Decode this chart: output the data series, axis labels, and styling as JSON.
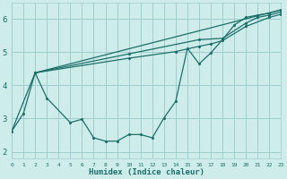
{
  "bg_color": "#ceecea",
  "grid_color": "#9ecece",
  "line_color": "#1a7068",
  "xlabel": "Humidex (Indice chaleur)",
  "xlim": [
    0,
    23
  ],
  "ylim": [
    1.8,
    6.5
  ],
  "yticks": [
    2,
    3,
    4,
    5,
    6
  ],
  "xticks": [
    0,
    1,
    2,
    3,
    4,
    5,
    6,
    7,
    8,
    9,
    10,
    11,
    12,
    13,
    14,
    15,
    16,
    17,
    18,
    19,
    20,
    21,
    22,
    23
  ],
  "curve1_x": [
    0,
    1,
    2,
    3,
    5,
    6,
    7,
    8,
    9,
    10,
    11,
    12,
    13,
    14,
    15,
    16,
    17,
    18,
    19,
    20,
    21,
    22,
    23
  ],
  "curve1_y": [
    2.62,
    3.15,
    4.38,
    3.62,
    2.88,
    2.98,
    2.42,
    2.32,
    2.32,
    2.52,
    2.52,
    2.42,
    3.02,
    3.52,
    5.12,
    4.65,
    4.98,
    5.38,
    5.82,
    6.05,
    6.12,
    6.18,
    6.28
  ],
  "curve2_x": [
    0,
    2,
    23
  ],
  "curve2_y": [
    2.62,
    4.38,
    6.28
  ],
  "curve3_x": [
    2,
    10,
    16,
    18,
    20,
    21,
    22,
    23
  ],
  "curve3_y": [
    4.38,
    4.95,
    5.38,
    5.42,
    5.88,
    6.05,
    6.12,
    6.22
  ],
  "curve4_x": [
    2,
    10,
    14,
    16,
    17,
    18,
    20,
    22,
    23
  ],
  "curve4_y": [
    4.38,
    4.82,
    5.02,
    5.18,
    5.25,
    5.35,
    5.78,
    6.05,
    6.15
  ]
}
